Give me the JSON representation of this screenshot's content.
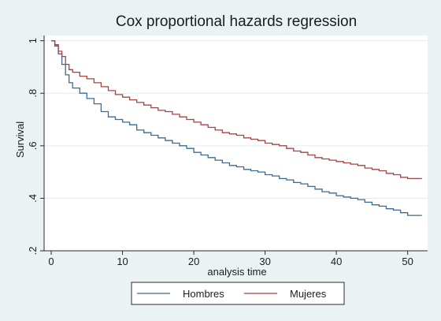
{
  "chart_data": {
    "type": "line",
    "title": "Cox proportional hazards regression",
    "xlabel": "analysis time",
    "ylabel": "Survival",
    "xlim": [
      -1,
      52.8
    ],
    "ylim": [
      0.2,
      1.02
    ],
    "xticks": [
      {
        "value": 0,
        "label": "0"
      },
      {
        "value": 10,
        "label": "10"
      },
      {
        "value": 20,
        "label": "20"
      },
      {
        "value": 30,
        "label": "30"
      },
      {
        "value": 40,
        "label": "40"
      },
      {
        "value": 50,
        "label": "50"
      }
    ],
    "yticks": [
      {
        "value": 0.2,
        "label": ".2"
      },
      {
        "value": 0.4,
        "label": ".4"
      },
      {
        "value": 0.6,
        "label": ".6"
      },
      {
        "value": 0.8,
        "label": ".8"
      },
      {
        "value": 1.0,
        "label": "1"
      }
    ],
    "grid": "horizontal",
    "legend_position": "bottom",
    "step": true,
    "series": [
      {
        "name": "Hombres",
        "color": "#3e6a8f",
        "x": [
          0,
          0.5,
          1,
          1.5,
          2,
          2.5,
          3,
          4,
          5,
          6,
          7,
          8,
          9,
          10,
          11,
          12,
          13,
          14,
          15,
          16,
          17,
          18,
          19,
          20,
          21,
          22,
          23,
          24,
          25,
          26,
          27,
          28,
          29,
          30,
          31,
          32,
          33,
          34,
          35,
          36,
          37,
          38,
          39,
          40,
          41,
          42,
          43,
          44,
          45,
          46,
          47,
          48,
          49,
          50,
          51,
          52
        ],
        "y": [
          1.0,
          0.98,
          0.95,
          0.91,
          0.87,
          0.84,
          0.82,
          0.8,
          0.78,
          0.76,
          0.73,
          0.71,
          0.7,
          0.69,
          0.68,
          0.66,
          0.65,
          0.64,
          0.63,
          0.62,
          0.61,
          0.6,
          0.59,
          0.575,
          0.565,
          0.555,
          0.545,
          0.535,
          0.525,
          0.52,
          0.51,
          0.505,
          0.5,
          0.49,
          0.485,
          0.475,
          0.47,
          0.46,
          0.455,
          0.445,
          0.435,
          0.425,
          0.42,
          0.41,
          0.405,
          0.4,
          0.395,
          0.385,
          0.375,
          0.37,
          0.36,
          0.355,
          0.345,
          0.335,
          0.335,
          0.335
        ]
      },
      {
        "name": "Mujeres",
        "color": "#a04545",
        "x": [
          0,
          0.5,
          1,
          1.5,
          2,
          2.5,
          3,
          4,
          5,
          6,
          7,
          8,
          9,
          10,
          11,
          12,
          13,
          14,
          15,
          16,
          17,
          18,
          19,
          20,
          21,
          22,
          23,
          24,
          25,
          26,
          27,
          28,
          29,
          30,
          31,
          32,
          33,
          34,
          35,
          36,
          37,
          38,
          39,
          40,
          41,
          42,
          43,
          44,
          45,
          46,
          47,
          48,
          49,
          50,
          51,
          52
        ],
        "y": [
          1.0,
          0.985,
          0.96,
          0.94,
          0.91,
          0.89,
          0.88,
          0.865,
          0.855,
          0.84,
          0.825,
          0.81,
          0.795,
          0.785,
          0.775,
          0.765,
          0.755,
          0.745,
          0.735,
          0.73,
          0.72,
          0.71,
          0.7,
          0.69,
          0.68,
          0.67,
          0.66,
          0.65,
          0.645,
          0.64,
          0.63,
          0.625,
          0.62,
          0.61,
          0.605,
          0.6,
          0.59,
          0.58,
          0.575,
          0.565,
          0.555,
          0.55,
          0.545,
          0.54,
          0.535,
          0.53,
          0.525,
          0.515,
          0.51,
          0.505,
          0.495,
          0.49,
          0.48,
          0.475,
          0.475,
          0.475
        ]
      }
    ]
  }
}
